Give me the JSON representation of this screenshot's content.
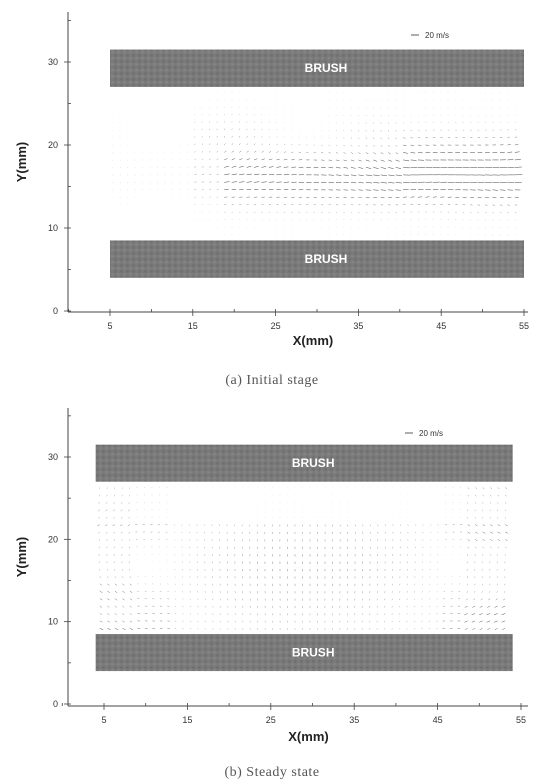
{
  "chart_data": [
    {
      "type": "quiver",
      "caption": "(a) Initial stage",
      "xlabel": "X(mm)",
      "ylabel": "Y(mm)",
      "xlim": [
        0,
        55
      ],
      "ylim": [
        0,
        35
      ],
      "x_ticks": [
        "5",
        "15",
        "25",
        "35",
        "45",
        "55"
      ],
      "y_ticks": [
        "0",
        "10",
        "20",
        "30"
      ],
      "reference_vector": "20 m/s",
      "brushes": [
        {
          "label": "BRUSH",
          "x_range": [
            5,
            55
          ],
          "y_range": [
            27,
            31.5
          ]
        },
        {
          "label": "BRUSH",
          "x_range": [
            5,
            55
          ],
          "y_range": [
            4,
            8.5
          ]
        }
      ]
    },
    {
      "type": "quiver",
      "caption": "(b) Steady state",
      "xlabel": "X(mm)",
      "ylabel": "Y(mm)",
      "xlim": [
        0,
        55
      ],
      "ylim": [
        0,
        35
      ],
      "x_ticks": [
        "5",
        "15",
        "25",
        "35",
        "45",
        "55"
      ],
      "y_ticks": [
        "0",
        "10",
        "20",
        "30"
      ],
      "reference_vector": "20 m/s",
      "brushes": [
        {
          "label": "BRUSH",
          "x_range": [
            4,
            54
          ],
          "y_range": [
            27,
            31.5
          ]
        },
        {
          "label": "BRUSH",
          "x_range": [
            4,
            54
          ],
          "y_range": [
            4,
            8.5
          ]
        }
      ]
    }
  ]
}
